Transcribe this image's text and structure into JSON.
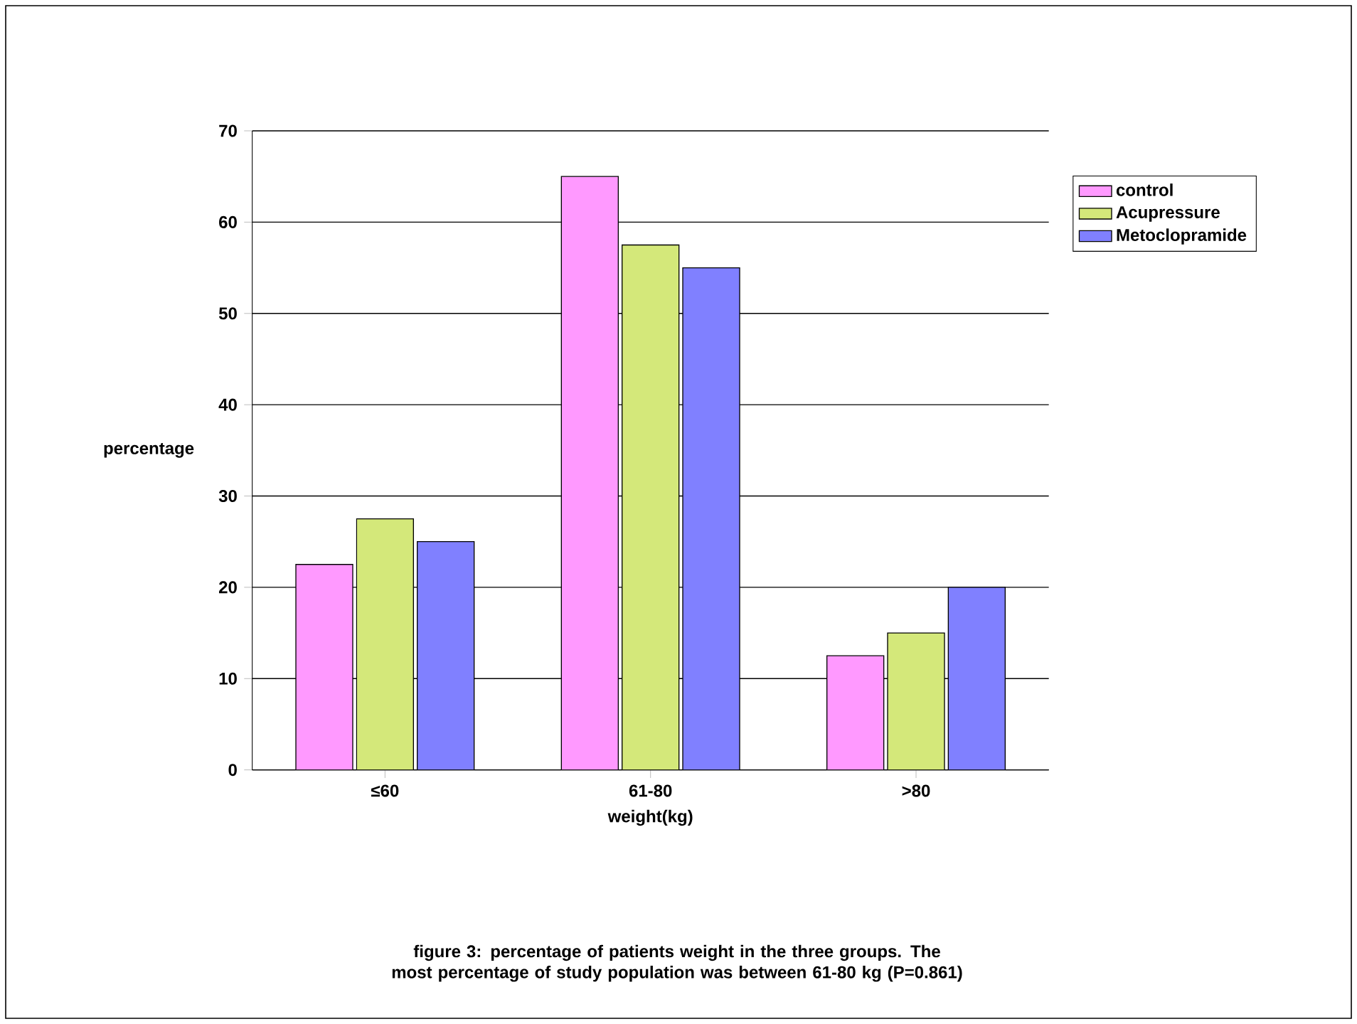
{
  "chart_data": {
    "type": "bar",
    "xlabel": "weight(kg)",
    "ylabel": "percentage",
    "categories": [
      "≤60",
      "61-80",
      ">80"
    ],
    "series": [
      {
        "name": "control",
        "color": "#ff99ff",
        "values": [
          22.5,
          65,
          12.5
        ]
      },
      {
        "name": "Acupressure",
        "color": "#d4e87a",
        "values": [
          27.5,
          57.5,
          15
        ]
      },
      {
        "name": "Metoclopramide",
        "color": "#8080ff",
        "values": [
          25,
          55,
          20
        ]
      }
    ],
    "ylim": [
      0,
      70
    ],
    "yticks": [
      0,
      10,
      20,
      30,
      40,
      50,
      60,
      70
    ],
    "grid": "y",
    "legend": "right",
    "annotations": [
      "figure 3: percentage of patients weight in the three groups. The most percentage of study population was between 61-80 kg (P=0.861)"
    ]
  }
}
